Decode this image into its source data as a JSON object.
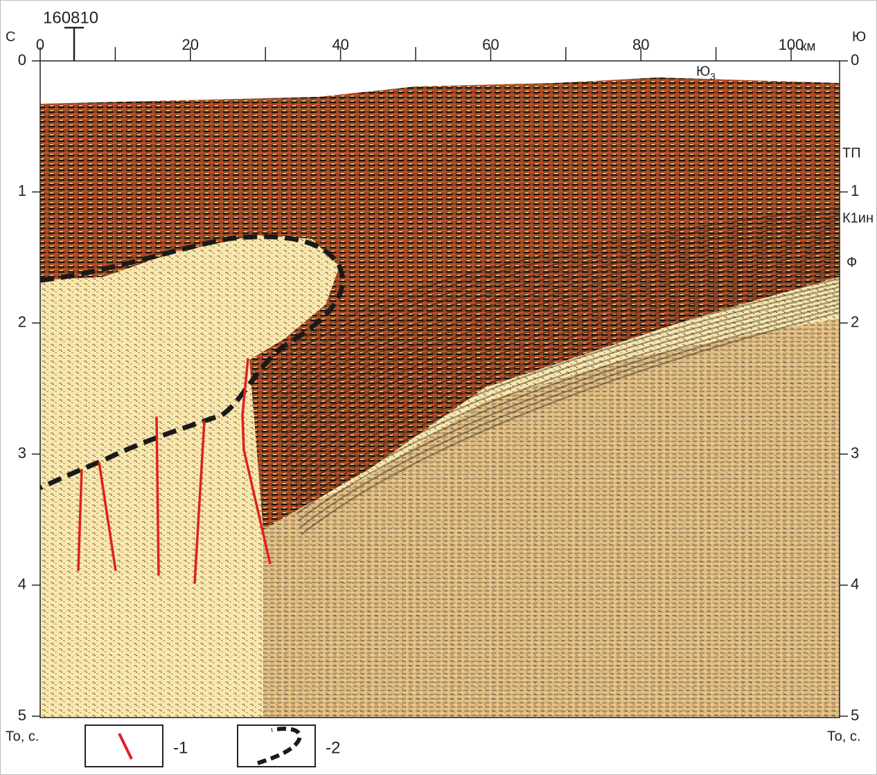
{
  "well": "160810",
  "left_end": "С",
  "right_end": "Ю",
  "x_axis": {
    "ticks": [
      0,
      20,
      40,
      60,
      80,
      100
    ],
    "minor_ticks": [
      10,
      30,
      50,
      70,
      90
    ],
    "unit": "км"
  },
  "y_axis": {
    "ticks": [
      0,
      1,
      2,
      3,
      4,
      5
    ],
    "label_left": "То, с.",
    "label_right": "То, с."
  },
  "horizons": [
    {
      "label": "ТП"
    },
    {
      "label": "К1ин"
    },
    {
      "label": "Ф"
    },
    {
      "label": "Ю",
      "sub": "3"
    }
  ],
  "legend": [
    {
      "label": "-1"
    },
    {
      "label": "-2"
    }
  ]
}
